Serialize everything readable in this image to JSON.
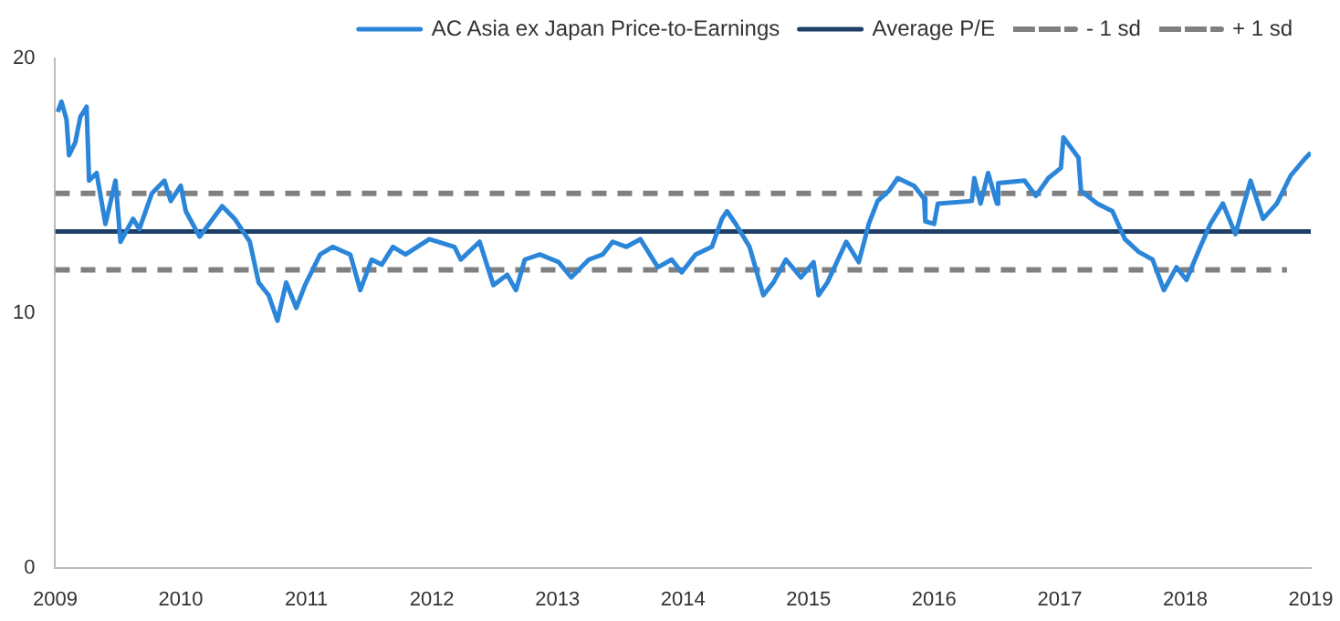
{
  "chart_data": {
    "type": "line",
    "legend": "top",
    "marker": "none",
    "grid": false,
    "xlim": [
      2009,
      2019
    ],
    "xticks": [
      2009,
      2010,
      2011,
      2012,
      2013,
      2014,
      2015,
      2016,
      2017,
      2018,
      2019
    ],
    "ylim": [
      0,
      20
    ],
    "yticks": [
      0,
      10,
      20
    ],
    "series": [
      {
        "name": "AC Asia ex Japan Price-to-Earnings",
        "color": "#2b86d9",
        "line_style": "solid",
        "x": [
          2009.02,
          2009.05,
          2009.09,
          2009.11,
          2009.16,
          2009.2,
          2009.25,
          2009.27,
          2009.33,
          2009.4,
          2009.48,
          2009.52,
          2009.62,
          2009.67,
          2009.77,
          2009.87,
          2009.92,
          2010.0,
          2010.04,
          2010.15,
          2010.33,
          2010.43,
          2010.55,
          2010.62,
          2010.7,
          2010.77,
          2010.84,
          2010.92,
          2010.99,
          2011.11,
          2011.21,
          2011.35,
          2011.43,
          2011.52,
          2011.6,
          2011.69,
          2011.79,
          2011.98,
          2012.18,
          2012.23,
          2012.38,
          2012.49,
          2012.6,
          2012.67,
          2012.74,
          2012.86,
          2013.01,
          2013.11,
          2013.25,
          2013.36,
          2013.44,
          2013.55,
          2013.66,
          2013.8,
          2013.91,
          2013.99,
          2014.1,
          2014.23,
          2014.31,
          2014.35,
          2014.42,
          2014.53,
          2014.64,
          2014.72,
          2014.82,
          2014.94,
          2015.04,
          2015.08,
          2015.15,
          2015.3,
          2015.4,
          2015.48,
          2015.55,
          2015.64,
          2015.71,
          2015.84,
          2015.92,
          2015.93,
          2016.0,
          2016.03,
          2016.3,
          2016.32,
          2016.37,
          2016.43,
          2016.5,
          2016.51,
          2016.72,
          2016.81,
          2016.91,
          2017.01,
          2017.03,
          2017.15,
          2017.17,
          2017.3,
          2017.42,
          2017.52,
          2017.63,
          2017.74,
          2017.83,
          2017.93,
          2018.01,
          2018.12,
          2018.2,
          2018.3,
          2018.4,
          2018.52,
          2018.62,
          2018.73,
          2018.84,
          2018.96,
          2019.0
        ],
        "values": [
          17.9,
          18.3,
          17.6,
          16.2,
          16.7,
          17.7,
          18.1,
          15.2,
          15.5,
          13.5,
          15.2,
          12.8,
          13.7,
          13.3,
          14.7,
          15.2,
          14.4,
          15.0,
          14.0,
          13.0,
          14.2,
          13.7,
          12.8,
          11.2,
          10.7,
          9.7,
          11.2,
          10.2,
          11.1,
          12.3,
          12.6,
          12.3,
          10.9,
          12.1,
          11.9,
          12.6,
          12.3,
          12.9,
          12.6,
          12.1,
          12.8,
          11.1,
          11.5,
          10.9,
          12.1,
          12.3,
          12.0,
          11.4,
          12.1,
          12.3,
          12.8,
          12.6,
          12.9,
          11.8,
          12.1,
          11.6,
          12.3,
          12.6,
          13.7,
          14.0,
          13.5,
          12.6,
          10.7,
          11.2,
          12.1,
          11.4,
          12.0,
          10.7,
          11.2,
          12.8,
          12.0,
          13.5,
          14.4,
          14.8,
          15.3,
          15.0,
          14.5,
          13.6,
          13.5,
          14.3,
          14.4,
          15.3,
          14.3,
          15.5,
          14.3,
          15.1,
          15.2,
          14.6,
          15.3,
          15.7,
          16.9,
          16.1,
          14.8,
          14.3,
          14.0,
          12.9,
          12.4,
          12.1,
          10.9,
          11.8,
          11.3,
          12.6,
          13.5,
          14.3,
          13.1,
          15.2,
          13.7,
          14.3,
          15.4,
          16.1,
          16.3
        ]
      },
      {
        "name": "Average P/E",
        "color": "#1f3f66",
        "line_style": "solid",
        "x": [
          2009,
          2019
        ],
        "values": [
          13.2,
          13.2
        ]
      },
      {
        "name": "- 1 sd",
        "color": "#808080",
        "line_style": "dashed",
        "x": [
          2009,
          2018.81
        ],
        "values": [
          11.7,
          11.7
        ]
      },
      {
        "name": "+ 1 sd",
        "color": "#808080",
        "line_style": "dashed",
        "x": [
          2009,
          2018.81
        ],
        "values": [
          14.7,
          14.7
        ]
      }
    ]
  }
}
